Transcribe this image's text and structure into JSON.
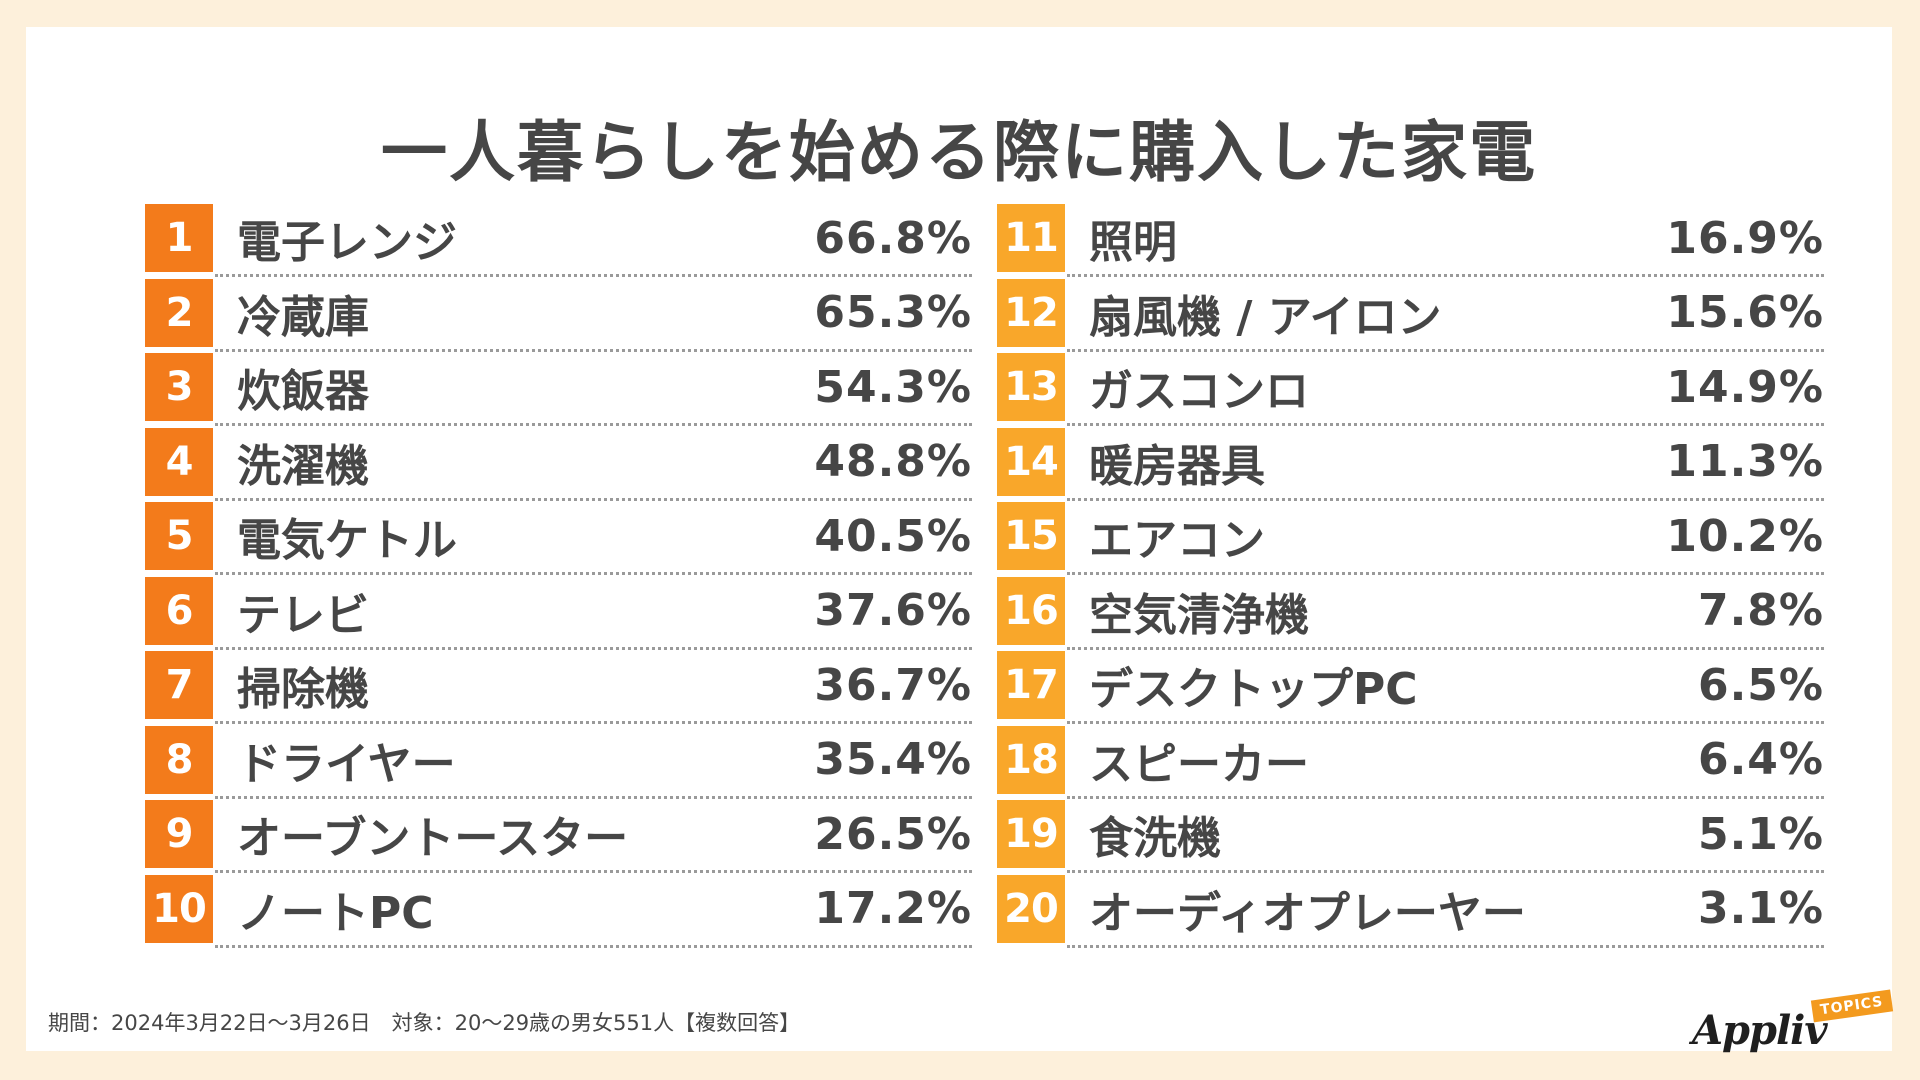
{
  "title": "一人暮らしを始める際に購入した家電",
  "footnote": "期間：2024年3月22日〜3月26日　対象：20〜29歳の男女551人【複数回答】",
  "logo": {
    "name": "Appliv",
    "tag": "TOPICS"
  },
  "colors": {
    "left_rank": "#f37b1b",
    "right_rank": "#f9a72a",
    "text": "#464646",
    "page_bg": "#fdf0db"
  },
  "chart_data": {
    "type": "table",
    "title": "一人暮らしを始める際に購入した家電",
    "columns": [
      [
        {
          "rank": "1",
          "item": "電子レンジ",
          "value": "66.8%"
        },
        {
          "rank": "2",
          "item": "冷蔵庫",
          "value": "65.3%"
        },
        {
          "rank": "3",
          "item": "炊飯器",
          "value": "54.3%"
        },
        {
          "rank": "4",
          "item": "洗濯機",
          "value": "48.8%"
        },
        {
          "rank": "5",
          "item": "電気ケトル",
          "value": "40.5%"
        },
        {
          "rank": "6",
          "item": "テレビ",
          "value": "37.6%"
        },
        {
          "rank": "7",
          "item": "掃除機",
          "value": "36.7%"
        },
        {
          "rank": "8",
          "item": "ドライヤー",
          "value": "35.4%"
        },
        {
          "rank": "9",
          "item": "オーブントースター",
          "value": "26.5%"
        },
        {
          "rank": "10",
          "item": "ノートPC",
          "value": "17.2%"
        }
      ],
      [
        {
          "rank": "11",
          "item": "照明",
          "value": "16.9%"
        },
        {
          "rank": "12",
          "item": "扇風機 / アイロン",
          "value": "15.6%"
        },
        {
          "rank": "13",
          "item": "ガスコンロ",
          "value": "14.9%"
        },
        {
          "rank": "14",
          "item": "暖房器具",
          "value": "11.3%"
        },
        {
          "rank": "15",
          "item": "エアコン",
          "value": "10.2%"
        },
        {
          "rank": "16",
          "item": "空気清浄機",
          "value": "7.8%"
        },
        {
          "rank": "17",
          "item": "デスクトップPC",
          "value": "6.5%"
        },
        {
          "rank": "18",
          "item": "スピーカー",
          "value": "6.4%"
        },
        {
          "rank": "19",
          "item": "食洗機",
          "value": "5.1%"
        },
        {
          "rank": "20",
          "item": "オーディオプレーヤー",
          "value": "3.1%"
        }
      ]
    ]
  }
}
